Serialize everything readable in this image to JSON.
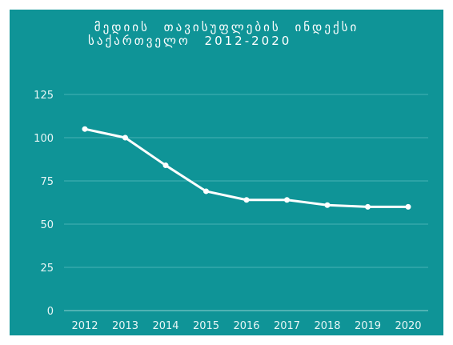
{
  "chart_data": {
    "type": "line",
    "title_line1": "მედიის თავისუფლების ინდექსი",
    "title_line2": "საქართველო 2012-2020",
    "xlabel": "",
    "ylabel": "",
    "categories": [
      "2012",
      "2013",
      "2014",
      "2015",
      "2016",
      "2017",
      "2018",
      "2019",
      "2020"
    ],
    "series": [
      {
        "values": [
          105,
          100,
          84,
          69,
          64,
          64,
          61,
          60,
          60
        ]
      }
    ],
    "ylim": [
      0,
      125
    ],
    "yticks": [
      0,
      25,
      50,
      75,
      100,
      125
    ],
    "grid": true,
    "colors": {
      "background": "#0f9497",
      "line": "#ffffff",
      "grid": "#47b2b4",
      "text": "#e8f6f6"
    }
  }
}
